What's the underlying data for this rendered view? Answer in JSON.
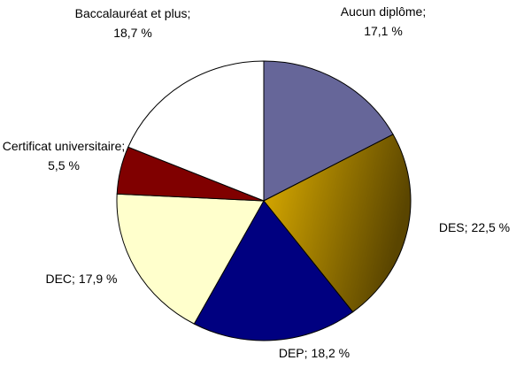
{
  "chart_data": {
    "type": "pie",
    "categories": [
      "Aucun diplôme;",
      "DES;",
      "DEP;",
      "DEC;",
      "Certificat universitaire;",
      "Baccalauréat et plus;"
    ],
    "values": [
      17.1,
      22.5,
      18.2,
      17.9,
      5.5,
      18.7
    ],
    "value_labels": [
      "17,1 %",
      "22,5 %",
      "18,2 %",
      "17,9 %",
      "5,5 %",
      "18,7 %"
    ],
    "colors": [
      "#666699",
      "#e0b000",
      "#000080",
      "#ffffcc",
      "#800000",
      "#ffffff"
    ]
  }
}
